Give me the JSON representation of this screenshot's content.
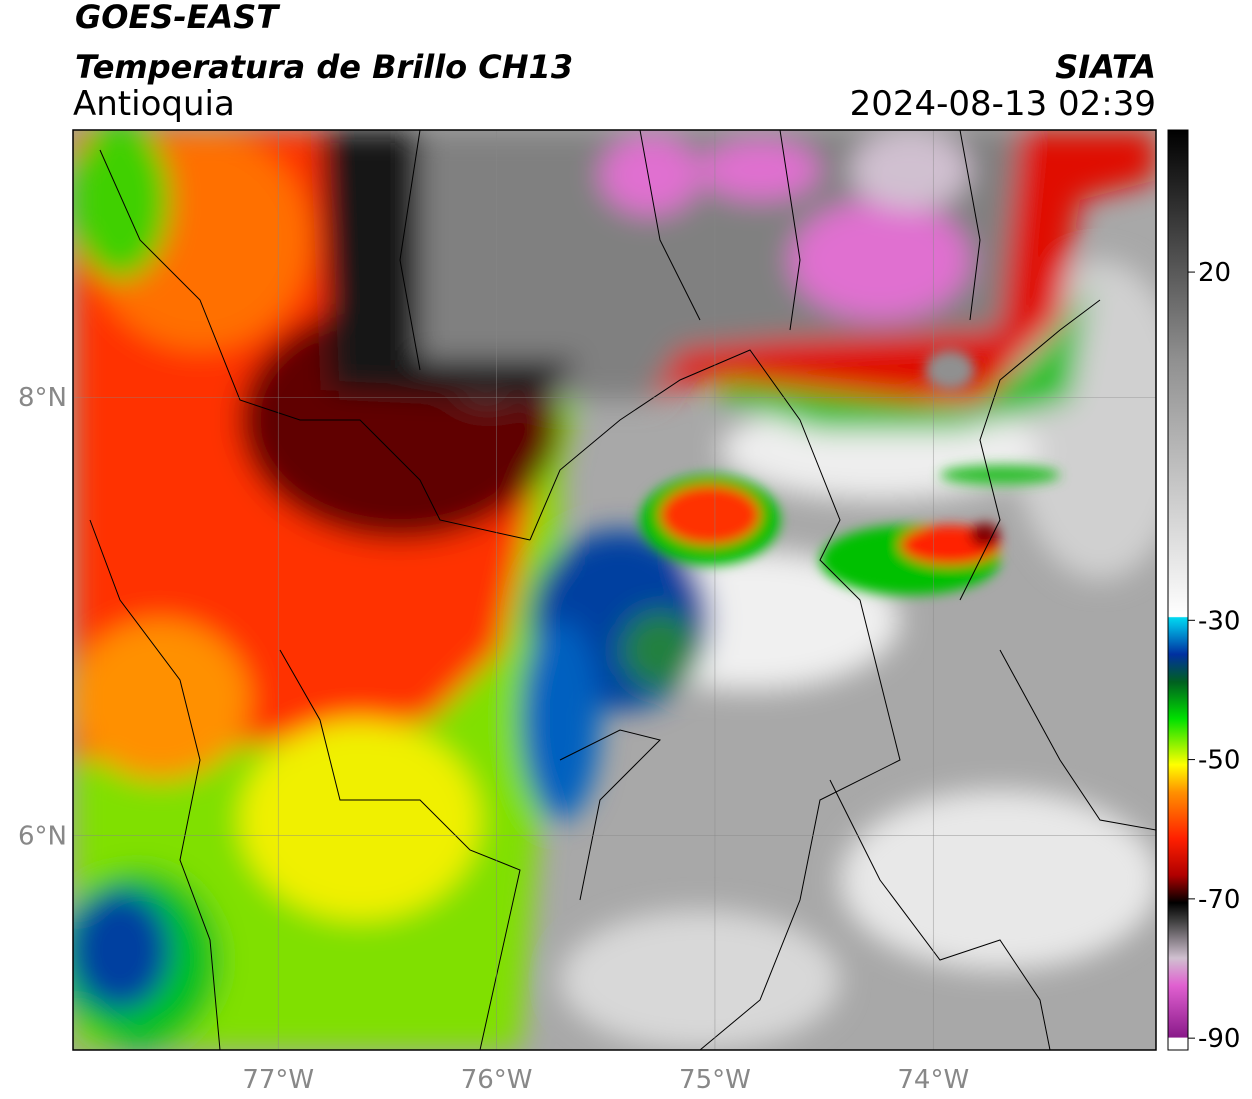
{
  "header": {
    "title": "GOES-EAST",
    "subtitle": "Temperatura de Brillo CH13",
    "region": "Antioquia",
    "source": "SIATA",
    "datetime": "2024-08-13 02:39"
  },
  "map": {
    "xlim": [
      -77.94,
      -72.98
    ],
    "ylim": [
      5.02,
      9.22
    ],
    "xticks": [
      {
        "value": -77,
        "label": "77°W"
      },
      {
        "value": -76,
        "label": "76°W"
      },
      {
        "value": -75,
        "label": "75°W"
      },
      {
        "value": -74,
        "label": "74°W"
      }
    ],
    "yticks": [
      {
        "value": 8,
        "label": "8°N"
      },
      {
        "value": 6,
        "label": "6°N"
      }
    ]
  },
  "colorbar": {
    "lim": [
      -91.7,
      40.4
    ],
    "ticks": [
      20,
      -30,
      -50,
      -70,
      -90
    ]
  }
}
